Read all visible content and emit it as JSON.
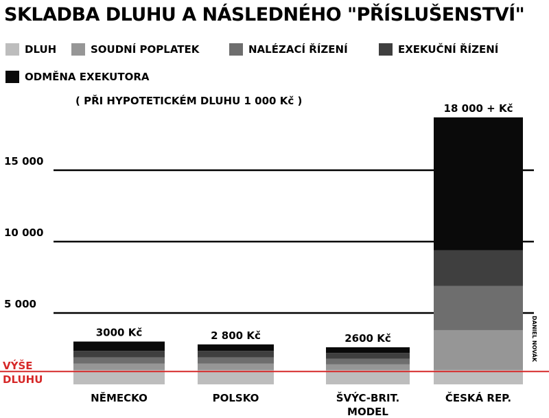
{
  "title": "SKLADBA DLUHU A NÁSLEDNÉHO \"PŘÍSLUŠENSTVÍ\"",
  "subtitle": "( PŘI HYPOTETICKÉM DLUHU 1 000 Kč )",
  "credit": "DANIEL NOVÁK",
  "colors": {
    "dluh": "#bdbdbd",
    "soudni_poplatek": "#969696",
    "nalezaci_rizeni": "#6e6e6e",
    "exekucni_rizeni": "#3f3f3f",
    "odmena_exekutora": "#0a0a0a",
    "debt_line": "#d62828"
  },
  "legend": [
    {
      "label": "DLUH",
      "color": "#bdbdbd"
    },
    {
      "label": "SOUDNÍ POPLATEK",
      "color": "#969696"
    },
    {
      "label": "NALÉZACÍ ŘÍZENÍ",
      "color": "#6e6e6e"
    },
    {
      "label": "EXEKUČNÍ ŘÍZENÍ",
      "color": "#3f3f3f"
    },
    {
      "label": "ODMĚNA EXEKUTORA",
      "color": "#0a0a0a"
    }
  ],
  "chart_data": {
    "type": "bar",
    "stacked": true,
    "title": "SKLADBA DLUHU A NÁSLEDNÉHO \"PŘÍSLUŠENSTVÍ\"",
    "subtitle": "( PŘI HYPOTETICKÉM DLUHU 1 000 Kč )",
    "categories": [
      "NĚMECKO",
      "POLSKO",
      "ŠVÝC-BRIT. MODEL",
      "ČESKÁ REP."
    ],
    "category_lines": [
      [
        "NĚMECKO"
      ],
      [
        "POLSKO"
      ],
      [
        "ŠVÝC-BRIT.",
        "MODEL"
      ],
      [
        "ČESKÁ REP."
      ]
    ],
    "series": [
      {
        "name": "DLUH",
        "values": [
          1000,
          1000,
          1000,
          1000
        ]
      },
      {
        "name": "SOUDNÍ POPLATEK",
        "values": [
          450,
          450,
          400,
          2800
        ]
      },
      {
        "name": "NALÉZACÍ ŘÍZENÍ",
        "values": [
          450,
          450,
          400,
          3100
        ]
      },
      {
        "name": "EXEKUČNÍ ŘÍZENÍ",
        "values": [
          450,
          450,
          400,
          2500
        ]
      },
      {
        "name": "ODMĚNA EXEKUTORA",
        "values": [
          650,
          450,
          400,
          9300
        ]
      }
    ],
    "data_labels": [
      "3000 Kč",
      "2 800 Kč",
      "2600 Kč",
      "18 000 + Kč"
    ],
    "yticks": [
      5000,
      10000,
      15000
    ],
    "ytick_labels": [
      "5 000",
      "10 000",
      "15 000"
    ],
    "ylim": [
      0,
      20000
    ],
    "grid": true,
    "reference_line": {
      "value": 1000,
      "label_lines": [
        "VÝŠE",
        "DLUHU"
      ]
    }
  }
}
